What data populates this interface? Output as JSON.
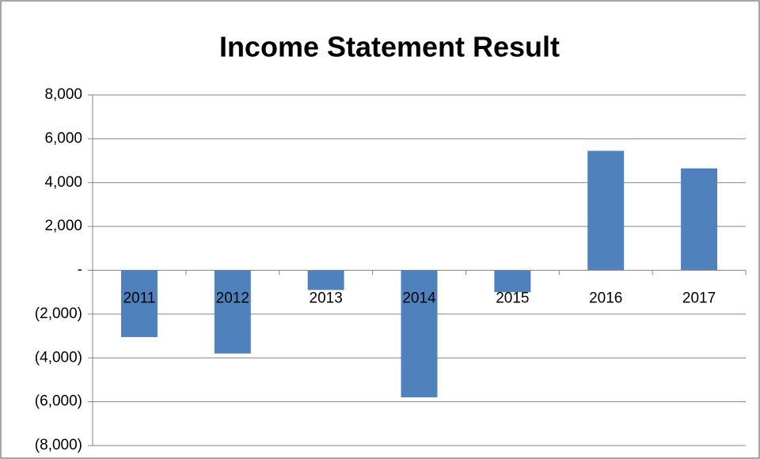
{
  "chart_data": {
    "type": "bar",
    "title": "Income Statement Result",
    "categories": [
      "2011",
      "2012",
      "2013",
      "2014",
      "2015",
      "2016",
      "2017"
    ],
    "values": [
      -3050,
      -3800,
      -900,
      -5800,
      -1000,
      5450,
      4650
    ],
    "color": "#4f81bd",
    "ylim": [
      -8000,
      8000
    ],
    "yticks": [
      {
        "value": -8000,
        "label": "(8,000)"
      },
      {
        "value": -6000,
        "label": "(6,000)"
      },
      {
        "value": -4000,
        "label": "(4,000)"
      },
      {
        "value": -2000,
        "label": "(2,000)"
      },
      {
        "value": 0,
        "label": "-"
      },
      {
        "value": 2000,
        "label": "2,000"
      },
      {
        "value": 4000,
        "label": "4,000"
      },
      {
        "value": 6000,
        "label": "6,000"
      },
      {
        "value": 8000,
        "label": "8,000"
      }
    ],
    "grid": true,
    "negative_tick_color": "#ff0000"
  }
}
